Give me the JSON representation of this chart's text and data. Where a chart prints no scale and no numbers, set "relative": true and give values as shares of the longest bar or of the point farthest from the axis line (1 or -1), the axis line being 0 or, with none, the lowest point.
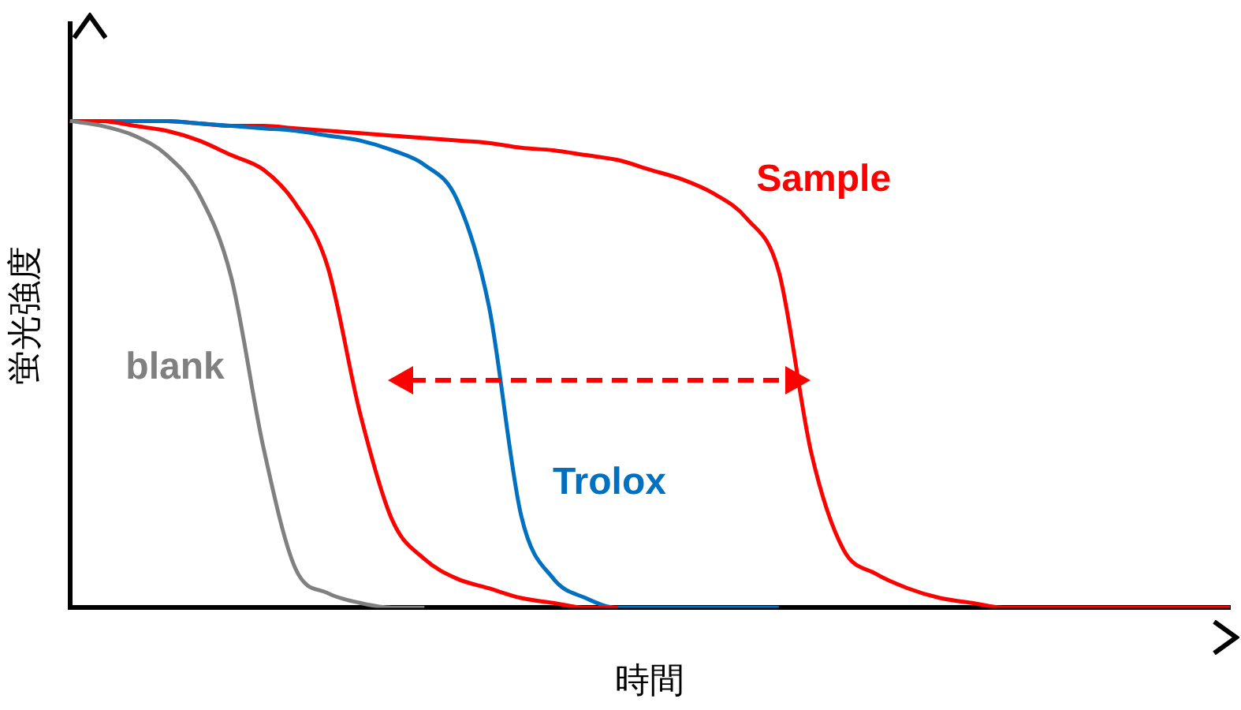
{
  "chart_data": {
    "type": "line",
    "relative": true,
    "xlabel": "時間",
    "ylabel": "蛍光強度",
    "legend": false,
    "grid": false,
    "marker": "none",
    "line_style": "solid",
    "categories": [
      null,
      null,
      null,
      null,
      null,
      null,
      null,
      null,
      null,
      null,
      null,
      null,
      null,
      null,
      null,
      null,
      null,
      null,
      null,
      null,
      null,
      null,
      null,
      null,
      null,
      null,
      null,
      null,
      null,
      null,
      null,
      null,
      null,
      null,
      null,
      null,
      null
    ],
    "series": [
      {
        "name": "blank",
        "color": "#808080",
        "values": [
          1,
          0.99,
          0.97,
          0.93,
          0.85,
          0.68,
          0.33,
          0.08,
          0.03,
          0.01,
          0,
          0,
          null,
          null,
          null,
          null,
          null,
          null,
          null,
          null,
          null,
          null,
          null,
          null,
          null,
          null,
          null,
          null,
          null,
          null,
          null,
          null,
          null,
          null,
          null,
          null,
          null
        ]
      },
      {
        "color": "#ff0000",
        "values": [
          1,
          1,
          0.99,
          0.98,
          0.96,
          0.93,
          0.9,
          0.83,
          0.7,
          0.4,
          0.18,
          0.1,
          0.06,
          0.04,
          0.02,
          0.01,
          0,
          0,
          null,
          null,
          null,
          null,
          null,
          null,
          null,
          null,
          null,
          null,
          null,
          null,
          null,
          null,
          null,
          null,
          null,
          null,
          null
        ]
      },
      {
        "name": "Trolox",
        "color": "#0070c0",
        "values": [
          1,
          1,
          1,
          1,
          0.995,
          0.99,
          0.985,
          0.98,
          0.97,
          0.96,
          0.94,
          0.91,
          0.84,
          0.62,
          0.19,
          0.06,
          0.02,
          0,
          0,
          0,
          0,
          0,
          0,
          null,
          null,
          null,
          null,
          null,
          null,
          null,
          null,
          null,
          null,
          null,
          null,
          null,
          null
        ]
      },
      {
        "name": "Sample",
        "color": "#ff0000",
        "values": [
          1,
          1,
          1,
          1,
          0.995,
          0.99,
          0.99,
          0.985,
          0.98,
          0.975,
          0.97,
          0.965,
          0.96,
          0.955,
          0.945,
          0.94,
          0.93,
          0.92,
          0.9,
          0.88,
          0.85,
          0.8,
          0.69,
          0.32,
          0.12,
          0.07,
          0.04,
          0.02,
          0.01,
          0,
          0,
          0,
          0,
          0,
          0,
          0,
          0
        ]
      }
    ]
  }
}
